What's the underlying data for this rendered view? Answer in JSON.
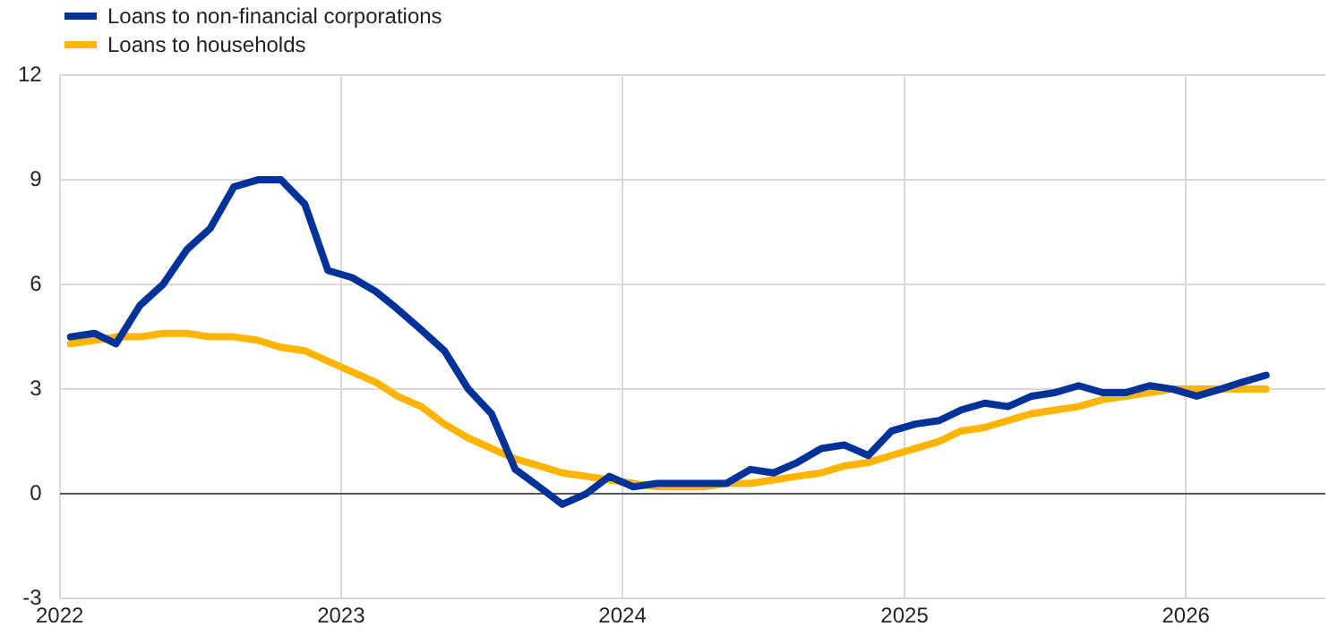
{
  "chart_data": {
    "type": "line",
    "x": [
      "2022-01-15",
      "2022-02-15",
      "2022-03-15",
      "2022-04-15",
      "2022-05-15",
      "2022-06-15",
      "2022-07-15",
      "2022-08-15",
      "2022-09-15",
      "2022-10-15",
      "2022-11-15",
      "2022-12-15",
      "2023-01-15",
      "2023-02-15",
      "2023-03-15",
      "2023-04-15",
      "2023-05-15",
      "2023-06-15",
      "2023-07-15",
      "2023-08-15",
      "2023-09-15",
      "2023-10-15",
      "2023-11-15",
      "2023-12-15",
      "2024-01-15",
      "2024-02-15",
      "2024-03-15",
      "2024-04-15",
      "2024-05-15",
      "2024-06-15",
      "2024-07-15",
      "2024-08-15",
      "2024-09-15",
      "2024-10-15",
      "2024-11-15",
      "2024-12-15",
      "2025-01-15",
      "2025-02-15",
      "2025-03-15",
      "2025-04-15",
      "2025-05-15",
      "2025-06-15",
      "2025-07-15",
      "2025-08-15",
      "2025-09-15",
      "2025-10-15",
      "2025-11-15",
      "2025-12-15",
      "2026-01-15",
      "2026-02-15",
      "2026-03-15",
      "2026-04-15"
    ],
    "series": [
      {
        "name": "Loans to non-financial corporations",
        "color": "#003299",
        "values": [
          4.5,
          4.6,
          4.3,
          5.4,
          6.0,
          7.0,
          7.6,
          8.8,
          9.0,
          9.0,
          8.3,
          6.4,
          6.2,
          5.8,
          5.3,
          4.7,
          4.1,
          3.0,
          2.3,
          0.7,
          0.2,
          -0.3,
          0.0,
          0.5,
          0.2,
          0.3,
          0.3,
          0.3,
          0.3,
          0.7,
          0.6,
          0.9,
          1.3,
          1.4,
          1.1,
          1.8,
          2.0,
          2.1,
          2.4,
          2.6,
          2.5,
          2.8,
          2.9,
          3.1,
          2.9,
          2.9,
          3.1,
          3.0,
          2.8,
          3.0,
          3.2,
          3.4
        ]
      },
      {
        "name": "Loans to households",
        "color": "#ffb400",
        "values": [
          4.3,
          4.4,
          4.5,
          4.5,
          4.6,
          4.6,
          4.5,
          4.5,
          4.4,
          4.2,
          4.1,
          3.8,
          3.5,
          3.2,
          2.8,
          2.5,
          2.0,
          1.6,
          1.3,
          1.0,
          0.8,
          0.6,
          0.5,
          0.4,
          0.3,
          0.2,
          0.2,
          0.2,
          0.3,
          0.3,
          0.4,
          0.5,
          0.6,
          0.8,
          0.9,
          1.1,
          1.3,
          1.5,
          1.8,
          1.9,
          2.1,
          2.3,
          2.4,
          2.5,
          2.7,
          2.8,
          2.9,
          3.0,
          3.0,
          3.0,
          3.0,
          3.0
        ]
      }
    ],
    "xlim": [
      "2022-01",
      "2026-07"
    ],
    "xticks": [
      "2022",
      "2023",
      "2024",
      "2025",
      "2026"
    ],
    "ylim": [
      -3,
      12
    ],
    "yticks": [
      -3,
      0,
      3,
      6,
      9,
      12
    ],
    "grid": true,
    "legend": "top left",
    "marker": "none",
    "line_style": "solid"
  }
}
